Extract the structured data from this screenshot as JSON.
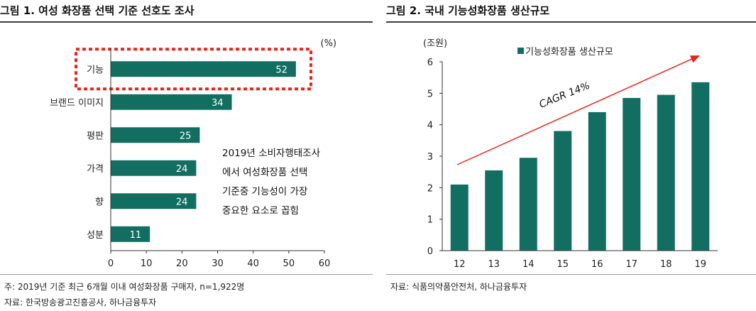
{
  "left_panel": {
    "title": "그림 1. 여성 화장품 선택 기준 선호도 조사",
    "unit": "(%)",
    "annotation": [
      "2019년 소비자행태조사",
      "에서 여성화장품 선택",
      "기준중 기능성이 가장",
      "중요한 요소로 꼽힘"
    ],
    "footnote": "주: 2019년 기준 최근 6개월 이내 여성화장품 구매자, n=1,922명",
    "source": "자료: 한국방송광고진흥공사, 하나금융투자"
  },
  "right_panel": {
    "title": "그림 2. 국내 기능성화장품 생산규모",
    "unit": "(조원)",
    "trend_label": "CAGR 14%",
    "source": "자료: 식품의약품안전처, 하나금융투자"
  },
  "chart_data": [
    {
      "type": "bar",
      "orientation": "horizontal",
      "categories": [
        "기능",
        "브랜드 이미지",
        "평판",
        "가격",
        "향",
        "성분"
      ],
      "values": [
        52,
        34,
        25,
        24,
        24,
        11
      ],
      "xlim": [
        0,
        60
      ],
      "xticks": [
        0,
        10,
        20,
        30,
        40,
        50,
        60
      ],
      "bar_color": "#136e62",
      "highlight_category": "기능",
      "highlight_color": "#e8231d",
      "data_labels": true,
      "grid": false,
      "legend": false
    },
    {
      "type": "bar",
      "categories": [
        "12",
        "13",
        "14",
        "15",
        "16",
        "17",
        "18",
        "19"
      ],
      "series": [
        {
          "name": "기능성화장품 생산규모",
          "values": [
            2.1,
            2.55,
            2.95,
            3.8,
            4.4,
            4.85,
            4.95,
            5.35
          ]
        }
      ],
      "ylim": [
        0,
        6
      ],
      "yticks": [
        0,
        1,
        2,
        3,
        4,
        5,
        6
      ],
      "bar_color": "#136e62",
      "trend_arrow_color": "#e8231d",
      "legend": "top-left",
      "grid": false
    }
  ]
}
